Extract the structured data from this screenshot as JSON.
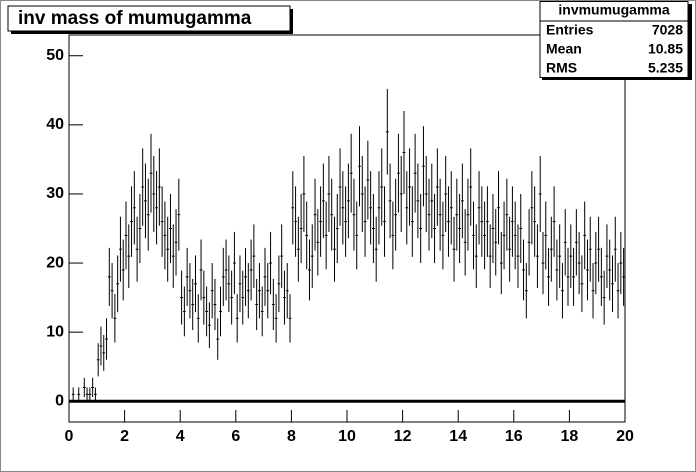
{
  "chart_data": {
    "type": "histogram",
    "title": "inv mass of mumugamma",
    "stats": {
      "name": "invmumugamma",
      "rows": [
        [
          "Entries",
          7028
        ],
        [
          "Mean",
          10.85
        ],
        [
          "RMS",
          5.235
        ]
      ]
    },
    "bins": [
      0,
      0.1,
      0.2,
      0.3,
      0.4,
      0.5,
      0.6,
      0.7,
      0.8,
      0.9,
      1,
      1.1,
      1.2,
      1.3,
      1.4,
      1.5,
      1.6,
      1.7,
      1.8,
      1.9,
      2,
      2.1,
      2.2,
      2.3,
      2.4,
      2.5,
      2.6,
      2.7,
      2.8,
      2.9,
      3,
      3.1,
      3.2,
      3.3,
      3.4,
      3.5,
      3.6,
      3.7,
      3.8,
      3.9,
      4,
      4.1,
      4.2,
      4.3,
      4.4,
      4.5,
      4.6,
      4.7,
      4.8,
      4.9,
      5,
      5.1,
      5.2,
      5.3,
      5.4,
      5.5,
      5.6,
      5.7,
      5.8,
      5.9,
      6,
      6.1,
      6.2,
      6.3,
      6.4,
      6.5,
      6.6,
      6.7,
      6.8,
      6.9,
      7,
      7.1,
      7.2,
      7.3,
      7.4,
      7.5,
      7.6,
      7.7,
      7.8,
      7.9,
      8,
      8.1,
      8.2,
      8.3,
      8.4,
      8.5,
      8.6,
      8.7,
      8.8,
      8.9,
      9,
      9.1,
      9.2,
      9.3,
      9.4,
      9.5,
      9.6,
      9.7,
      9.8,
      9.9,
      10,
      10.1,
      10.2,
      10.3,
      10.4,
      10.5,
      10.6,
      10.7,
      10.8,
      10.9,
      11,
      11.1,
      11.2,
      11.3,
      11.4,
      11.5,
      11.6,
      11.7,
      11.8,
      11.9,
      12,
      12.1,
      12.2,
      12.3,
      12.4,
      12.5,
      12.6,
      12.7,
      12.8,
      12.9,
      13,
      13.1,
      13.2,
      13.3,
      13.4,
      13.5,
      13.6,
      13.7,
      13.8,
      13.9,
      14,
      14.1,
      14.2,
      14.3,
      14.4,
      14.5,
      14.6,
      14.7,
      14.8,
      14.9,
      15,
      15.1,
      15.2,
      15.3,
      15.4,
      15.5,
      15.6,
      15.7,
      15.8,
      15.9,
      16,
      16.1,
      16.2,
      16.3,
      16.4,
      16.5,
      16.6,
      16.7,
      16.8,
      16.9,
      17,
      17.1,
      17.2,
      17.3,
      17.4,
      17.5,
      17.6,
      17.7,
      17.8,
      17.9,
      18,
      18.1,
      18.2,
      18.3,
      18.4,
      18.5,
      18.6,
      18.7,
      18.8,
      18.9,
      19,
      19.1,
      19.2,
      19.3,
      19.4,
      19.5,
      19.6,
      19.7,
      19.8,
      19.9,
      20
    ],
    "values": [
      0,
      1,
      0,
      1,
      0,
      2,
      1,
      1,
      2,
      1,
      6,
      8,
      7,
      9,
      18,
      16,
      12,
      17,
      22,
      19,
      24,
      21,
      26,
      28,
      22,
      25,
      31,
      29,
      27,
      33,
      30,
      28,
      31,
      26,
      24,
      22,
      25,
      21,
      23,
      27,
      15,
      13,
      18,
      16,
      14,
      17,
      12,
      19,
      15,
      13,
      11,
      16,
      14,
      9,
      13,
      18,
      19,
      17,
      15,
      20,
      12,
      17,
      15,
      18,
      16,
      19,
      21,
      14,
      16,
      13,
      18,
      16,
      20,
      14,
      12,
      17,
      21,
      15,
      16,
      12,
      28,
      26,
      22,
      25,
      30,
      24,
      19,
      21,
      27,
      23,
      26,
      29,
      24,
      30,
      27,
      22,
      25,
      31,
      28,
      26,
      29,
      33,
      27,
      24,
      34,
      30,
      26,
      32,
      28,
      25,
      22,
      28,
      31,
      26,
      39,
      29,
      24,
      27,
      33,
      30,
      36,
      28,
      31,
      26,
      33,
      29,
      25,
      34,
      30,
      27,
      29,
      25,
      31,
      27,
      24,
      30,
      26,
      28,
      22,
      27,
      25,
      29,
      23,
      27,
      31,
      24,
      21,
      28,
      26,
      24,
      26,
      21,
      25,
      23,
      28,
      20,
      24,
      27,
      22,
      26,
      24,
      21,
      25,
      19,
      16,
      23,
      28,
      26,
      21,
      30,
      20,
      24,
      18,
      22,
      26,
      19,
      21,
      16,
      23,
      18,
      21,
      18,
      23,
      20,
      17,
      24,
      19,
      22,
      16,
      20,
      22,
      18,
      15,
      21,
      19,
      17,
      22,
      16,
      20,
      18
    ],
    "errors": [
      0,
      1,
      0,
      1,
      0,
      1.4,
      1,
      1,
      1.4,
      1,
      2.4,
      2.8,
      2.6,
      3,
      4.2,
      4,
      3.5,
      4.1,
      4.7,
      4.4,
      4.9,
      4.6,
      5.1,
      5.3,
      4.7,
      5,
      5.6,
      5.4,
      5.2,
      5.7,
      5.5,
      5.3,
      5.6,
      5.1,
      4.9,
      4.7,
      5,
      4.6,
      4.8,
      5.2,
      3.9,
      3.6,
      4.2,
      4,
      3.7,
      4.1,
      3.5,
      4.4,
      3.9,
      3.6,
      3.3,
      4,
      3.7,
      3,
      3.6,
      4.2,
      4.4,
      4.1,
      3.9,
      4.5,
      3.5,
      4.1,
      3.9,
      4.2,
      4,
      4.4,
      4.6,
      3.7,
      4,
      3.6,
      4.2,
      4,
      4.5,
      3.7,
      3.5,
      4.1,
      4.6,
      3.9,
      4,
      3.5,
      5.3,
      5.1,
      4.7,
      5,
      5.5,
      4.9,
      4.4,
      4.6,
      5.2,
      4.8,
      5.1,
      5.4,
      4.9,
      5.5,
      5.2,
      4.7,
      5,
      5.6,
      5.3,
      5.1,
      5.4,
      5.7,
      5.2,
      4.9,
      5.8,
      5.5,
      5.1,
      5.7,
      5.3,
      5,
      4.7,
      5.3,
      5.6,
      5.1,
      6.2,
      5.4,
      4.9,
      5.2,
      5.7,
      5.5,
      6,
      5.3,
      5.6,
      5.1,
      5.7,
      5.4,
      5,
      5.8,
      5.5,
      5.2,
      5.4,
      5,
      5.6,
      5.2,
      4.9,
      5.5,
      5.1,
      5.3,
      4.7,
      5.2,
      5,
      5.4,
      4.8,
      5.2,
      5.6,
      4.9,
      4.6,
      5.3,
      5.1,
      4.9,
      5.1,
      4.6,
      5,
      4.8,
      5.3,
      4.5,
      4.9,
      5.2,
      4.7,
      5.1,
      4.9,
      4.6,
      5,
      4.4,
      4,
      4.8,
      5.3,
      5.1,
      4.6,
      5.5,
      4.5,
      4.9,
      4.2,
      4.7,
      5.1,
      4.4,
      4.6,
      4,
      4.8,
      4.2,
      4.6,
      4.2,
      4.8,
      4.5,
      4.1,
      4.9,
      4.4,
      4.7,
      4,
      4.5,
      4.7,
      4.2,
      3.9,
      4.6,
      4.4,
      4.1,
      4.7,
      4,
      4.5,
      4.2
    ],
    "color": "#000000",
    "xlim": [
      0,
      20
    ],
    "xticks": [
      0,
      2,
      4,
      6,
      8,
      10,
      12,
      14,
      16,
      18,
      20
    ],
    "ylim": [
      -3,
      53
    ],
    "yticks": [
      0,
      10,
      20,
      30,
      40,
      50
    ]
  }
}
